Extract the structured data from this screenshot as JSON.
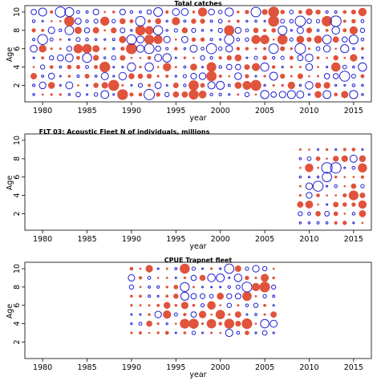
{
  "colors": {
    "positive": "#1f1fd0",
    "negative": "#e0533c",
    "frame": "#000000"
  },
  "chart_data": [
    {
      "type": "scatter",
      "subtype": "bubble-residuals",
      "title": "Total catches",
      "xlabel": "year",
      "ylabel": "Age",
      "xlim": [
        1978,
        2017
      ],
      "ylim": [
        0.2,
        10.7
      ],
      "xticks": [
        "1980",
        "1985",
        "1990",
        "1995",
        "2000",
        "2005",
        "2010",
        "2015"
      ],
      "yticks": [
        "2",
        "4",
        "6",
        "8",
        "10"
      ],
      "years": [
        1979,
        2016
      ],
      "ages": [
        1,
        10
      ],
      "seed": 11,
      "grid": false
    },
    {
      "type": "scatter",
      "subtype": "bubble-residuals",
      "title": "FLT 03: Acoustic Fleet   N of individuals, millions",
      "xlabel": "year",
      "ylabel": "Age",
      "xlim": [
        1978,
        2017
      ],
      "ylim": [
        0.2,
        10.7
      ],
      "xticks": [
        "1980",
        "1985",
        "1990",
        "1995",
        "2000",
        "2005",
        "2010",
        "2015"
      ],
      "yticks": [
        "2",
        "4",
        "6",
        "8",
        "10"
      ],
      "years": [
        2009,
        2016
      ],
      "ages": [
        1,
        9
      ],
      "seed": 23,
      "grid": false
    },
    {
      "type": "scatter",
      "subtype": "bubble-residuals",
      "title": "CPUE Trapnet fleet",
      "xlabel": "year",
      "ylabel": "Age",
      "xlim": [
        1978,
        2017
      ],
      "ylim": [
        0.2,
        10.7
      ],
      "xticks": [
        "1980",
        "1985",
        "1990",
        "1995",
        "2000",
        "2005",
        "2010",
        "2015"
      ],
      "yticks": [
        "2",
        "4",
        "6",
        "8",
        "10"
      ],
      "years": [
        1990,
        2006
      ],
      "ages": [
        3,
        10
      ],
      "seed": 37,
      "grid": false
    }
  ]
}
